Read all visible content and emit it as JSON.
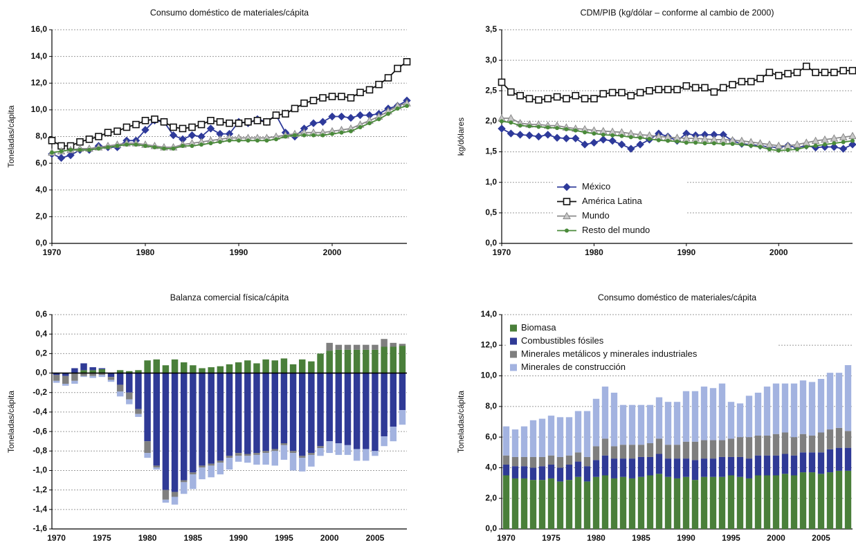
{
  "chart_data": [
    {
      "type": "line",
      "title": "Consumo doméstico de materiales/cápita",
      "ylabel": "Toneladas/cápita",
      "x": [
        1970,
        1971,
        1972,
        1973,
        1974,
        1975,
        1976,
        1977,
        1978,
        1979,
        1980,
        1981,
        1982,
        1983,
        1984,
        1985,
        1986,
        1987,
        1988,
        1989,
        1990,
        1991,
        1992,
        1993,
        1994,
        1995,
        1996,
        1997,
        1998,
        1999,
        2000,
        2001,
        2002,
        2003,
        2004,
        2005,
        2006,
        2007,
        2008
      ],
      "xlim": [
        1970,
        2008
      ],
      "xticks": [
        1970,
        1980,
        1990,
        2000
      ],
      "ylim": [
        0,
        16
      ],
      "yticks": [
        {
          "value": 0,
          "label": "0,0"
        },
        {
          "value": 2,
          "label": "2,0"
        },
        {
          "value": 4,
          "label": "4,0"
        },
        {
          "value": 6,
          "label": "6,0"
        },
        {
          "value": 8,
          "label": "8,0"
        },
        {
          "value": 10,
          "label": "10,0"
        },
        {
          "value": 12,
          "label": "12,0"
        },
        {
          "value": 14,
          "label": "14,0"
        },
        {
          "value": 16,
          "label": "16,0"
        }
      ],
      "grid": true,
      "series": [
        {
          "color": "#2e3a9a",
          "marker": "diamond",
          "values": [
            6.7,
            6.4,
            6.6,
            7.0,
            7.0,
            7.3,
            7.2,
            7.2,
            7.7,
            7.7,
            8.5,
            9.2,
            9.1,
            8.1,
            7.8,
            8.1,
            8.0,
            8.6,
            8.2,
            8.2,
            9.1,
            9.0,
            9.3,
            9.1,
            9.6,
            8.3,
            8.0,
            8.6,
            9.0,
            9.1,
            9.5,
            9.5,
            9.4,
            9.6,
            9.6,
            9.7,
            10.1,
            10.3,
            10.7
          ]
        },
        {
          "color": "#111111",
          "marker": "square",
          "values": [
            7.7,
            7.3,
            7.3,
            7.6,
            7.8,
            8.0,
            8.3,
            8.4,
            8.7,
            8.9,
            9.2,
            9.3,
            9.1,
            8.7,
            8.6,
            8.7,
            8.9,
            9.2,
            9.1,
            9.0,
            9.0,
            9.1,
            9.2,
            9.1,
            9.6,
            9.7,
            10.1,
            10.5,
            10.7,
            10.9,
            11.0,
            11.0,
            10.9,
            11.3,
            11.5,
            11.9,
            12.4,
            13.1,
            13.6
          ]
        },
        {
          "color": "#8a8a8a",
          "marker": "triangle",
          "values": [
            6.8,
            6.9,
            7.0,
            7.1,
            7.1,
            7.2,
            7.3,
            7.4,
            7.5,
            7.5,
            7.4,
            7.3,
            7.2,
            7.2,
            7.4,
            7.5,
            7.6,
            7.7,
            7.8,
            7.9,
            7.9,
            7.9,
            7.9,
            7.9,
            8.0,
            8.1,
            8.2,
            8.3,
            8.3,
            8.3,
            8.4,
            8.5,
            8.6,
            8.9,
            9.2,
            9.5,
            9.9,
            10.3,
            10.5
          ]
        },
        {
          "color": "#4a8a3a",
          "marker": "circle",
          "values": [
            6.8,
            6.9,
            7.0,
            7.0,
            7.0,
            7.1,
            7.2,
            7.3,
            7.4,
            7.4,
            7.3,
            7.2,
            7.1,
            7.1,
            7.3,
            7.3,
            7.4,
            7.5,
            7.6,
            7.7,
            7.7,
            7.7,
            7.7,
            7.7,
            7.8,
            8.0,
            8.1,
            8.1,
            8.1,
            8.1,
            8.2,
            8.3,
            8.4,
            8.7,
            9.0,
            9.3,
            9.7,
            10.1,
            10.3
          ]
        }
      ]
    },
    {
      "type": "line",
      "title": "CDM/PIB (kg/dólar – conforme al cambio de 2000)",
      "ylabel": "kg/dólares",
      "x": [
        1970,
        1971,
        1972,
        1973,
        1974,
        1975,
        1976,
        1977,
        1978,
        1979,
        1980,
        1981,
        1982,
        1983,
        1984,
        1985,
        1986,
        1987,
        1988,
        1989,
        1990,
        1991,
        1992,
        1993,
        1994,
        1995,
        1996,
        1997,
        1998,
        1999,
        2000,
        2001,
        2002,
        2003,
        2004,
        2005,
        2006,
        2007,
        2008
      ],
      "xlim": [
        1970,
        2008
      ],
      "xticks": [
        1970,
        1980,
        1990,
        2000
      ],
      "ylim": [
        0,
        3.5
      ],
      "yticks": [
        {
          "value": 0,
          "label": "0,0"
        },
        {
          "value": 0.5,
          "label": "0,5"
        },
        {
          "value": 1,
          "label": "1,0"
        },
        {
          "value": 1.5,
          "label": "1,5"
        },
        {
          "value": 2,
          "label": "2,0"
        },
        {
          "value": 2.5,
          "label": "2,5"
        },
        {
          "value": 3,
          "label": "3,0"
        },
        {
          "value": 3.5,
          "label": "3,5"
        }
      ],
      "grid": true,
      "legend": "lower left",
      "series": [
        {
          "name": "México",
          "color": "#2e3a9a",
          "marker": "diamond",
          "values": [
            1.88,
            1.8,
            1.78,
            1.77,
            1.75,
            1.78,
            1.73,
            1.72,
            1.72,
            1.62,
            1.65,
            1.7,
            1.68,
            1.62,
            1.55,
            1.62,
            1.7,
            1.8,
            1.75,
            1.68,
            1.8,
            1.77,
            1.78,
            1.78,
            1.78,
            1.68,
            1.63,
            1.62,
            1.6,
            1.58,
            1.57,
            1.6,
            1.57,
            1.6,
            1.57,
            1.58,
            1.58,
            1.55,
            1.62
          ]
        },
        {
          "name": "América Latina",
          "color": "#111111",
          "marker": "square",
          "values": [
            2.64,
            2.48,
            2.42,
            2.37,
            2.35,
            2.37,
            2.4,
            2.37,
            2.42,
            2.37,
            2.37,
            2.45,
            2.47,
            2.47,
            2.42,
            2.47,
            2.5,
            2.52,
            2.52,
            2.52,
            2.58,
            2.55,
            2.55,
            2.48,
            2.55,
            2.6,
            2.65,
            2.65,
            2.7,
            2.8,
            2.75,
            2.78,
            2.8,
            2.9,
            2.8,
            2.8,
            2.8,
            2.83,
            2.83
          ]
        },
        {
          "name": "Mundo",
          "color": "#8a8a8a",
          "marker": "triangle",
          "values": [
            2.05,
            2.05,
            1.97,
            1.95,
            1.95,
            1.93,
            1.93,
            1.9,
            1.88,
            1.87,
            1.85,
            1.84,
            1.83,
            1.82,
            1.8,
            1.78,
            1.77,
            1.75,
            1.74,
            1.73,
            1.72,
            1.72,
            1.71,
            1.7,
            1.7,
            1.69,
            1.68,
            1.66,
            1.64,
            1.62,
            1.6,
            1.6,
            1.62,
            1.65,
            1.68,
            1.7,
            1.72,
            1.74,
            1.76
          ]
        },
        {
          "name": "Resto del mundo",
          "color": "#4a8a3a",
          "marker": "circle",
          "values": [
            2.0,
            1.98,
            1.93,
            1.92,
            1.91,
            1.9,
            1.89,
            1.87,
            1.85,
            1.82,
            1.8,
            1.78,
            1.77,
            1.76,
            1.74,
            1.73,
            1.71,
            1.69,
            1.68,
            1.67,
            1.65,
            1.65,
            1.64,
            1.64,
            1.63,
            1.63,
            1.62,
            1.6,
            1.58,
            1.54,
            1.52,
            1.53,
            1.54,
            1.58,
            1.6,
            1.62,
            1.64,
            1.66,
            1.68
          ]
        }
      ]
    },
    {
      "type": "stacked-bar",
      "title": "Balanza comercial física/cápita",
      "ylabel": "Toneladas/cápita",
      "categories": [
        "1970",
        null,
        null,
        null,
        null,
        "1975",
        null,
        null,
        null,
        null,
        "1980",
        null,
        null,
        null,
        null,
        "1985",
        null,
        null,
        null,
        null,
        "1990",
        null,
        null,
        null,
        null,
        "1995",
        null,
        null,
        null,
        null,
        "2000",
        null,
        null,
        null,
        null,
        "2005",
        null,
        null,
        null
      ],
      "ylim": [
        -1.6,
        0.6
      ],
      "yticks": [
        {
          "value": -1.6,
          "label": "-1,6"
        },
        {
          "value": -1.4,
          "label": "-1,4"
        },
        {
          "value": -1.2,
          "label": "-1,2"
        },
        {
          "value": -1,
          "label": "-1,0"
        },
        {
          "value": -0.8,
          "label": "-0,8"
        },
        {
          "value": -0.6,
          "label": "-0,6"
        },
        {
          "value": -0.4,
          "label": "-0,4"
        },
        {
          "value": -0.2,
          "label": "-0,2"
        },
        {
          "value": 0,
          "label": "0,0"
        },
        {
          "value": 0.2,
          "label": "0,2"
        },
        {
          "value": 0.4,
          "label": "0,4"
        },
        {
          "value": 0.6,
          "label": "0,6"
        }
      ],
      "grid": true,
      "series": [
        {
          "color": "#4a7f3a",
          "values": [
            0,
            0,
            0,
            0.03,
            0.03,
            0.04,
            0,
            0.03,
            0.02,
            0.03,
            0.13,
            0.14,
            0.08,
            0.14,
            0.11,
            0.08,
            0.05,
            0.06,
            0.07,
            0.09,
            0.11,
            0.13,
            0.1,
            0.14,
            0.13,
            0.15,
            0.09,
            0.14,
            0.12,
            0.2,
            0.23,
            0.24,
            0.24,
            0.24,
            0.24,
            0.24,
            0.27,
            0.27,
            0.28
          ]
        },
        {
          "color": "#2f3a96",
          "values": [
            -0.02,
            -0.03,
            0.05,
            0.07,
            0.03,
            0.01,
            -0.04,
            -0.12,
            -0.2,
            -0.37,
            -0.7,
            -0.95,
            -1.2,
            -1.22,
            -1.1,
            -1.02,
            -0.95,
            -0.93,
            -0.9,
            -0.85,
            -0.82,
            -0.83,
            -0.82,
            -0.8,
            -0.78,
            -0.72,
            -0.8,
            -0.85,
            -0.82,
            -0.75,
            -0.7,
            -0.72,
            -0.74,
            -0.78,
            -0.78,
            -0.8,
            -0.65,
            -0.55,
            -0.38
          ]
        },
        {
          "color": "#7f7f7f",
          "values": [
            -0.06,
            -0.08,
            -0.08,
            -0.03,
            -0.03,
            -0.02,
            -0.03,
            -0.07,
            -0.07,
            -0.05,
            -0.12,
            -0.02,
            -0.1,
            -0.05,
            -0.02,
            -0.02,
            -0.02,
            -0.02,
            -0.02,
            -0.02,
            -0.03,
            -0.02,
            -0.02,
            -0.02,
            -0.02,
            -0.02,
            -0.02,
            -0.02,
            -0.02,
            -0.02,
            0.08,
            0.05,
            0.05,
            0.05,
            0.05,
            0.05,
            0.08,
            0.04,
            0.02
          ]
        },
        {
          "color": "#a3b3e0",
          "values": [
            -0.02,
            -0.02,
            -0.03,
            -0.01,
            -0.02,
            -0.02,
            -0.02,
            -0.05,
            -0.05,
            -0.03,
            -0.05,
            -0.02,
            -0.03,
            -0.08,
            -0.12,
            -0.15,
            -0.12,
            -0.12,
            -0.12,
            -0.12,
            -0.06,
            -0.07,
            -0.1,
            -0.12,
            -0.15,
            -0.15,
            -0.18,
            -0.14,
            -0.12,
            -0.08,
            -0.12,
            -0.12,
            -0.1,
            -0.12,
            -0.12,
            -0.05,
            -0.1,
            -0.15,
            -0.15
          ]
        }
      ]
    },
    {
      "type": "stacked-bar",
      "title": "Consumo doméstico de materiales/cápita",
      "ylabel": "Toneladas/cápita",
      "categories": [
        "1970",
        null,
        null,
        null,
        null,
        "1975",
        null,
        null,
        null,
        null,
        "1980",
        null,
        null,
        null,
        null,
        "1985",
        null,
        null,
        null,
        null,
        "1990",
        null,
        null,
        null,
        null,
        "1995",
        null,
        null,
        null,
        null,
        "2000",
        null,
        null,
        null,
        null,
        "2005",
        null,
        null,
        null
      ],
      "ylim": [
        0,
        14
      ],
      "yticks": [
        {
          "value": 0,
          "label": "0,0"
        },
        {
          "value": 2,
          "label": "2,0"
        },
        {
          "value": 4,
          "label": "4,0"
        },
        {
          "value": 6,
          "label": "6,0"
        },
        {
          "value": 8,
          "label": "8,0"
        },
        {
          "value": 10,
          "label": "10,0"
        },
        {
          "value": 12,
          "label": "12,0"
        },
        {
          "value": 14,
          "label": "14,0"
        }
      ],
      "grid": true,
      "legend": "upper left",
      "series": [
        {
          "name": "Biomasa",
          "color": "#4a7f3a",
          "values": [
            3.5,
            3.3,
            3.3,
            3.2,
            3.2,
            3.3,
            3.1,
            3.2,
            3.4,
            3.1,
            3.4,
            3.5,
            3.3,
            3.4,
            3.3,
            3.4,
            3.5,
            3.6,
            3.4,
            3.3,
            3.4,
            3.2,
            3.4,
            3.4,
            3.4,
            3.5,
            3.4,
            3.3,
            3.5,
            3.5,
            3.5,
            3.6,
            3.5,
            3.7,
            3.7,
            3.6,
            3.7,
            3.8,
            3.8
          ]
        },
        {
          "name": "Combustibles fósiles",
          "color": "#2f3a96",
          "values": [
            0.7,
            0.8,
            0.8,
            0.8,
            0.9,
            0.9,
            0.9,
            1.0,
            1.0,
            1.0,
            1.1,
            1.3,
            1.3,
            1.2,
            1.3,
            1.3,
            1.2,
            1.3,
            1.2,
            1.3,
            1.2,
            1.3,
            1.2,
            1.2,
            1.3,
            1.2,
            1.3,
            1.3,
            1.3,
            1.3,
            1.3,
            1.3,
            1.3,
            1.3,
            1.3,
            1.4,
            1.5,
            1.5,
            1.5
          ]
        },
        {
          "name": "Minerales metálicos y minerales industriales",
          "color": "#7f7f7f",
          "values": [
            0.6,
            0.6,
            0.6,
            0.7,
            0.6,
            0.6,
            0.7,
            0.6,
            0.6,
            0.6,
            0.9,
            1.1,
            0.8,
            0.9,
            0.9,
            0.8,
            0.9,
            1.0,
            0.9,
            0.9,
            1.1,
            1.2,
            1.2,
            1.2,
            1.1,
            1.2,
            1.3,
            1.4,
            1.3,
            1.3,
            1.4,
            1.4,
            1.2,
            1.2,
            1.1,
            1.3,
            1.3,
            1.3,
            1.1
          ]
        },
        {
          "name": "Minerales de construcción",
          "color": "#a3b3e0",
          "values": [
            1.9,
            1.8,
            2.0,
            2.4,
            2.5,
            2.6,
            2.6,
            2.5,
            2.7,
            3.0,
            3.1,
            3.4,
            3.5,
            2.6,
            2.6,
            2.6,
            2.5,
            2.7,
            2.8,
            2.8,
            3.3,
            3.3,
            3.5,
            3.4,
            3.7,
            2.4,
            2.2,
            2.7,
            2.8,
            3.2,
            3.3,
            3.2,
            3.5,
            3.5,
            3.5,
            3.5,
            3.7,
            3.6,
            4.3
          ]
        }
      ]
    }
  ]
}
